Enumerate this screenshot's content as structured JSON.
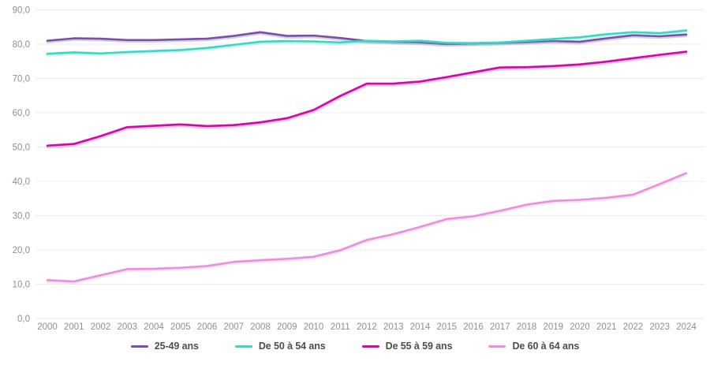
{
  "chart_data": {
    "type": "line",
    "title": "",
    "x": [
      2000,
      2001,
      2002,
      2003,
      2004,
      2005,
      2006,
      2007,
      2008,
      2009,
      2010,
      2011,
      2012,
      2013,
      2014,
      2015,
      2016,
      2017,
      2018,
      2019,
      2020,
      2021,
      2022,
      2023,
      2024
    ],
    "ylim": [
      0,
      90
    ],
    "ytick_step": 10,
    "ytick_labels": [
      "0,0",
      "10,0",
      "20,0",
      "30,0",
      "40,0",
      "50,0",
      "60,0",
      "70,0",
      "80,0",
      "90,0"
    ],
    "grid": true,
    "legend_position": "bottom",
    "series": [
      {
        "name": "25-49 ans",
        "color": "#7b4fa6",
        "values": [
          81.0,
          81.7,
          81.6,
          81.2,
          81.2,
          81.4,
          81.6,
          82.4,
          83.5,
          82.4,
          82.5,
          81.8,
          80.9,
          80.7,
          80.5,
          80.0,
          80.2,
          80.4,
          80.6,
          80.9,
          80.7,
          81.7,
          82.6,
          82.3,
          82.8
        ]
      },
      {
        "name": "De 50 à 54 ans",
        "color": "#3bd6c6",
        "values": [
          77.2,
          77.6,
          77.3,
          77.7,
          78.0,
          78.3,
          78.9,
          79.8,
          80.7,
          80.9,
          80.8,
          80.5,
          81.0,
          80.8,
          81.0,
          80.4,
          80.3,
          80.5,
          81.0,
          81.5,
          82.0,
          82.9,
          83.5,
          83.2,
          84.0
        ]
      },
      {
        "name": "De 55 à 59 ans",
        "color": "#cc0aa4",
        "values": [
          50.4,
          50.9,
          53.2,
          55.8,
          56.2,
          56.6,
          56.1,
          56.4,
          57.2,
          58.4,
          60.8,
          64.9,
          68.5,
          68.5,
          69.1,
          70.4,
          71.8,
          73.2,
          73.3,
          73.6,
          74.1,
          74.9,
          75.9,
          76.9,
          77.8
        ]
      },
      {
        "name": "De 60 à 64 ans",
        "color": "#e891da",
        "values": [
          11.2,
          10.8,
          12.6,
          14.4,
          14.5,
          14.8,
          15.3,
          16.5,
          17.0,
          17.4,
          18.0,
          19.9,
          22.9,
          24.6,
          26.7,
          29.0,
          29.8,
          31.4,
          33.2,
          34.3,
          34.6,
          35.2,
          36.1,
          39.2,
          42.4
        ]
      }
    ]
  },
  "colors": {
    "background": "#ffffff",
    "grid": "#ebebeb",
    "tick_text": "#8f8f8f",
    "legend_text": "#4d4d4d"
  }
}
